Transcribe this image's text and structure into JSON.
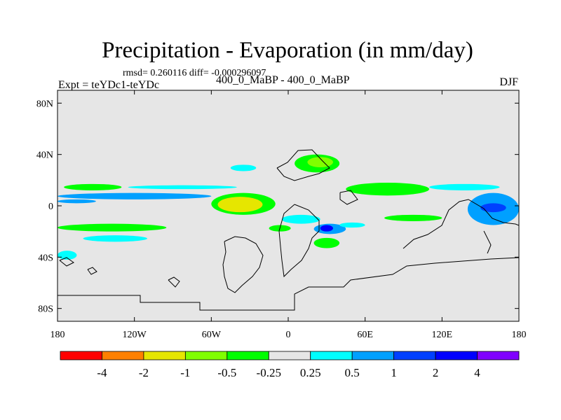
{
  "header": {
    "title": "Precipitation - Evaporation (in mm/day)",
    "stats": "rmsd= 0.260116 diff= -0.000296097",
    "experiment": "Expt = teYDc1-teYDc",
    "subtitle": "400_0_MaBP - 400_0_MaBP",
    "season": "DJF"
  },
  "chart_data": {
    "type": "heatmap",
    "title": "Precipitation - Evaporation (in mm/day)",
    "units": "mm/day",
    "x_range": [
      -180,
      180
    ],
    "y_range": [
      -90,
      90
    ],
    "x_ticks": [
      {
        "value": -180,
        "label": "180"
      },
      {
        "value": -120,
        "label": "120W"
      },
      {
        "value": -60,
        "label": "60W"
      },
      {
        "value": 0,
        "label": "0"
      },
      {
        "value": 60,
        "label": "60E"
      },
      {
        "value": 120,
        "label": "120E"
      },
      {
        "value": 180,
        "label": "180"
      }
    ],
    "y_ticks": [
      {
        "value": 80,
        "label": "80N"
      },
      {
        "value": 40,
        "label": "40N"
      },
      {
        "value": 0,
        "label": "0"
      },
      {
        "value": -40,
        "label": "40S"
      },
      {
        "value": -80,
        "label": "80S"
      }
    ],
    "levels": [
      -4,
      -2,
      -1,
      -0.5,
      -0.25,
      0.25,
      0.5,
      1,
      2,
      4
    ],
    "level_labels": [
      "-4",
      "-2",
      "-1",
      "-0.5",
      "-0.25",
      "0.25",
      "0.5",
      "1",
      "2",
      "4"
    ],
    "colors": [
      "#ff0000",
      "#ff8000",
      "#e6e600",
      "#80ff00",
      "#00ff00",
      "#e6e6e6",
      "#00ffff",
      "#00a0ff",
      "#0040ff",
      "#0000ff",
      "#8000ff"
    ],
    "background_color": "#e6e6e6",
    "anomaly_regions": [
      {
        "lon": [
          -180,
          -60
        ],
        "lat": [
          5,
          10
        ],
        "value": 0.7
      },
      {
        "lon": [
          -180,
          -150
        ],
        "lat": [
          2,
          5
        ],
        "value": 0.7
      },
      {
        "lon": [
          -175,
          -130
        ],
        "lat": [
          12,
          17
        ],
        "value": -0.3
      },
      {
        "lon": [
          -125,
          -40
        ],
        "lat": [
          13,
          16
        ],
        "value": 0.3
      },
      {
        "lon": [
          -60,
          -10
        ],
        "lat": [
          -7,
          10
        ],
        "value": -0.3
      },
      {
        "lon": [
          -55,
          -20
        ],
        "lat": [
          -5,
          7
        ],
        "value": -1.2
      },
      {
        "lon": [
          -45,
          -32
        ],
        "lat": [
          -3,
          3
        ],
        "value": -1.5
      },
      {
        "lon": [
          -180,
          -95
        ],
        "lat": [
          -20,
          -14
        ],
        "value": -0.3
      },
      {
        "lon": [
          -160,
          -110
        ],
        "lat": [
          -28,
          -23
        ],
        "value": 0.3
      },
      {
        "lon": [
          -15,
          2
        ],
        "lat": [
          -20,
          -15
        ],
        "value": -0.5
      },
      {
        "lon": [
          -5,
          25
        ],
        "lat": [
          -14,
          -7
        ],
        "value": 0.3
      },
      {
        "lon": [
          20,
          45
        ],
        "lat": [
          -22,
          -14
        ],
        "value": 0.8
      },
      {
        "lon": [
          25,
          35
        ],
        "lat": [
          -20,
          -15
        ],
        "value": 2.5
      },
      {
        "lon": [
          20,
          40
        ],
        "lat": [
          -33,
          -25
        ],
        "value": -0.3
      },
      {
        "lon": [
          5,
          40
        ],
        "lat": [
          26,
          40
        ],
        "value": -0.3
      },
      {
        "lon": [
          15,
          35
        ],
        "lat": [
          30,
          38
        ],
        "value": -0.6
      },
      {
        "lon": [
          -45,
          -25
        ],
        "lat": [
          27,
          32
        ],
        "value": 0.3
      },
      {
        "lon": [
          45,
          110
        ],
        "lat": [
          8,
          18
        ],
        "value": -0.3
      },
      {
        "lon": [
          110,
          165
        ],
        "lat": [
          12,
          17
        ],
        "value": 0.3
      },
      {
        "lon": [
          140,
          180
        ],
        "lat": [
          -15,
          10
        ],
        "value": 0.7
      },
      {
        "lon": [
          150,
          170
        ],
        "lat": [
          -5,
          2
        ],
        "value": 1.5
      },
      {
        "lon": [
          75,
          120
        ],
        "lat": [
          -12,
          -7
        ],
        "value": -0.3
      },
      {
        "lon": [
          40,
          60
        ],
        "lat": [
          -17,
          -13
        ],
        "value": 0.3
      },
      {
        "lon": [
          -180,
          -165
        ],
        "lat": [
          -42,
          -35
        ],
        "value": 0.3
      }
    ],
    "legend_placement": "bottom"
  }
}
